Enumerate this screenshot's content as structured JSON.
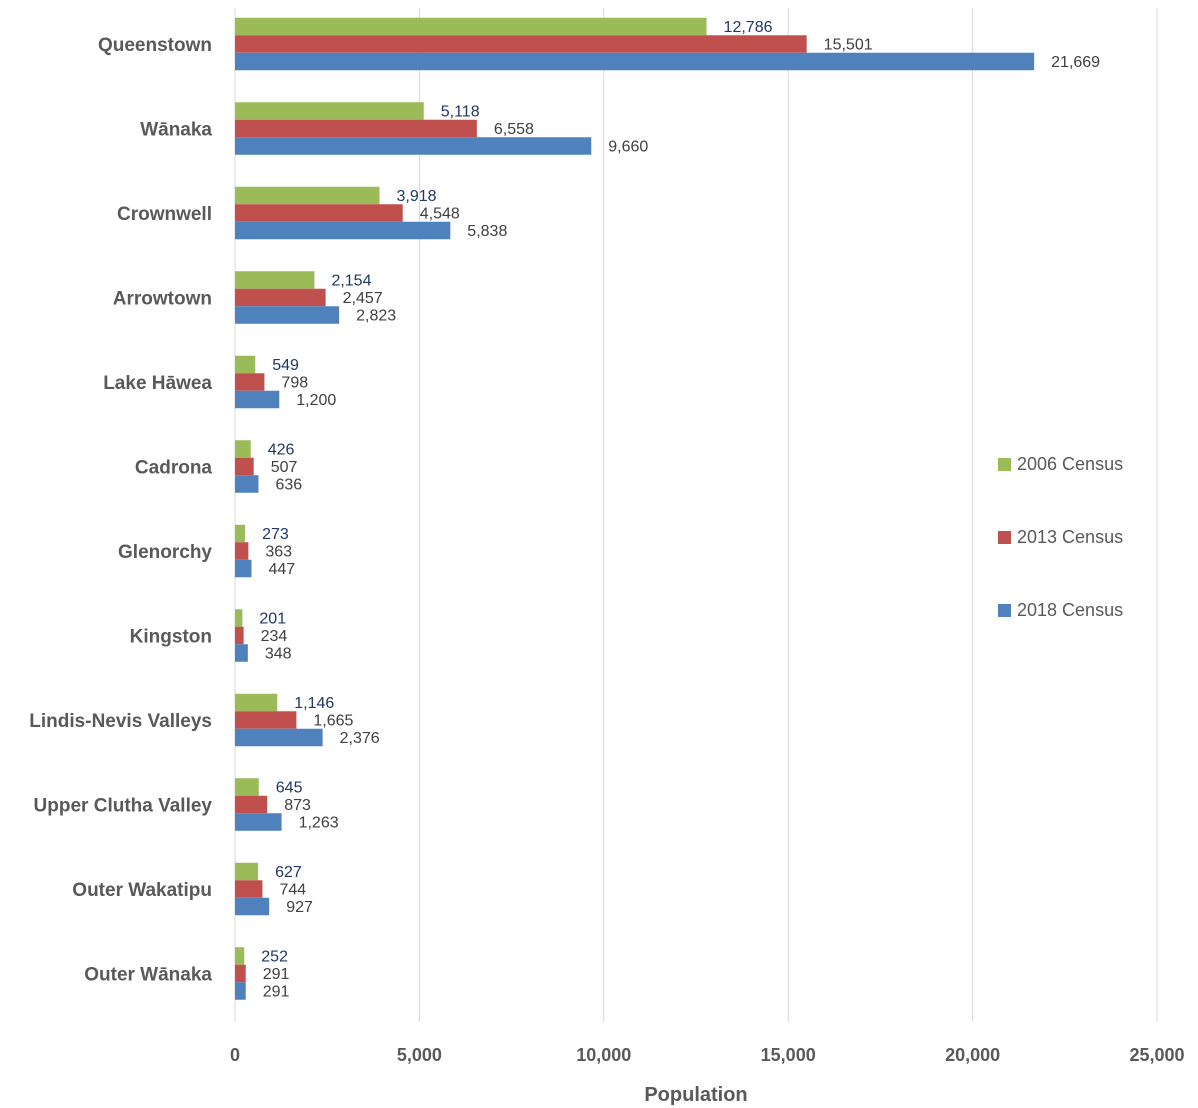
{
  "chart_data": {
    "type": "bar",
    "orientation": "horizontal",
    "categories": [
      "Queenstown",
      "Wānaka",
      "Crownwell",
      "Arrowtown",
      "Lake Hāwea",
      "Cadrona",
      "Glenorchy",
      "Kingston",
      "Lindis-Nevis Valleys",
      "Upper Clutha Valley",
      "Outer Wakatipu",
      "Outer Wānaka"
    ],
    "series": [
      {
        "name": "2006 Census",
        "color": "#9bbb59",
        "values": [
          12786,
          5118,
          3918,
          2154,
          549,
          426,
          273,
          201,
          1146,
          645,
          627,
          252
        ]
      },
      {
        "name": "2013 Census",
        "color": "#c0504d",
        "values": [
          15501,
          6558,
          4548,
          2457,
          798,
          507,
          363,
          234,
          1665,
          873,
          744,
          291
        ]
      },
      {
        "name": "2018 Census",
        "color": "#4f81bd",
        "values": [
          21669,
          9660,
          5838,
          2823,
          1200,
          636,
          447,
          348,
          2376,
          1263,
          927,
          291
        ]
      }
    ],
    "xlabel": "Population",
    "ylabel": "",
    "xlim": [
      0,
      25000
    ],
    "x_ticks": [
      0,
      5000,
      10000,
      15000,
      20000,
      25000
    ],
    "x_tick_labels": [
      "0",
      "5,000",
      "10,000",
      "15,000",
      "20,000",
      "25,000"
    ],
    "grid": true,
    "legend_position": "right",
    "data_labels": true
  }
}
